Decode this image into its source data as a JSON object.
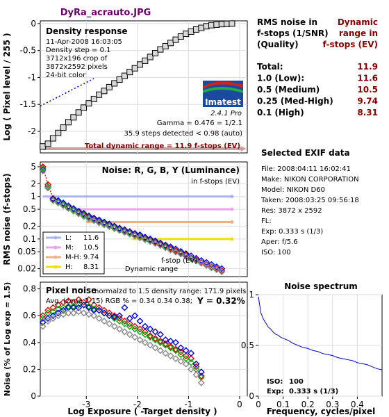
{
  "header": {
    "file_title": "DyRa_acrauto.JPG",
    "file_title_color": "#660066"
  },
  "summary": {
    "col1_header": [
      "RMS noise in",
      "f-stops (1/SNR)",
      "(Quality)"
    ],
    "col2_header": [
      "Dynamic",
      "range in",
      "f-stops (EV)"
    ],
    "rows": [
      {
        "label": "Total:",
        "value": "11.9"
      },
      {
        "label": "1.0   (Low):",
        "value": "11.6"
      },
      {
        "label": "0.5   (Medium)",
        "value": "10.5"
      },
      {
        "label": "0.25 (Med-High)",
        "value": "9.74"
      },
      {
        "label": "0.1   (High)",
        "value": "8.31"
      }
    ],
    "value_color": "#800000"
  },
  "exif": {
    "title": "Selected EXIF data",
    "lines": [
      "File:  2008:04:11 16:02:41",
      "Make:  NIKON CORPORATION",
      "Model: NIKON D60",
      "Taken: 2008:03:25 09:56:18",
      "Res:   3872 x 2592",
      "FL:",
      "Exp:   0.333 s  (1/3)",
      "Aper:  f/5.6",
      "ISO:   100"
    ]
  },
  "logo": {
    "brand": "Imatest",
    "version": "2.4.1  Pro"
  },
  "shared_x_axis": {
    "label": "Log Exposure ( -Target density )",
    "ticks": [
      -3,
      -2,
      -1,
      0
    ],
    "range": [
      -3.9,
      0.15
    ]
  },
  "chart_data": [
    {
      "id": "density",
      "type": "line",
      "title": "Density response",
      "info_lines": [
        "11-Apr-2008 16:03:05",
        "Density step = 0.1",
        "3712x196 crop of",
        "3872x2592 pixels",
        "24-bit color"
      ],
      "notes": [
        "Gamma = 0.476 = 1/2.1",
        "35.9 steps detected < 0.98 (auto)"
      ],
      "footer": "Total dynamic range = 11.9 f-stops (EV)",
      "ylabel": "Log ( Pixel level / 255 )",
      "ylim": [
        -2.4,
        0.05
      ],
      "yticks": [
        0,
        -0.5,
        -1,
        -1.5,
        -2
      ],
      "x": [
        -3.85,
        -3.75,
        -3.65,
        -3.55,
        -3.45,
        -3.35,
        -3.25,
        -3.15,
        -3.05,
        -2.95,
        -2.85,
        -2.75,
        -2.65,
        -2.55,
        -2.45,
        -2.35,
        -2.25,
        -2.15,
        -2.05,
        -1.95,
        -1.85,
        -1.75,
        -1.65,
        -1.55,
        -1.45,
        -1.35,
        -1.25,
        -1.15,
        -1.05,
        -0.95,
        -0.85,
        -0.75,
        -0.65,
        -0.55,
        -0.45,
        -0.35,
        -0.25,
        -0.15
      ],
      "y": [
        -2.28,
        -2.23,
        -2.13,
        -2.03,
        -1.93,
        -1.83,
        -1.74,
        -1.65,
        -1.56,
        -1.48,
        -1.4,
        -1.32,
        -1.25,
        -1.18,
        -1.11,
        -1.04,
        -0.97,
        -0.9,
        -0.83,
        -0.76,
        -0.69,
        -0.62,
        -0.55,
        -0.48,
        -0.42,
        -0.36,
        -0.3,
        -0.24,
        -0.19,
        -0.15,
        -0.11,
        -0.08,
        -0.05,
        -0.03,
        -0.02,
        -0.01,
        -0.005,
        0.0
      ],
      "fit_line": {
        "x": [
          -3.9,
          -2.85
        ],
        "y": [
          -1.53,
          -1.02
        ],
        "color": "#0000cc"
      },
      "range_bar": {
        "x": [
          -3.85,
          0.05
        ],
        "color": "#c8a0a0"
      }
    },
    {
      "id": "rms-noise",
      "type": "line",
      "title": "Noise: R, G, B, Y (Luminance)",
      "subtitle": "in f-stops (EV)",
      "ylabel": "RMS noise (f-stops)",
      "yscale": "log",
      "ylim": [
        0.013,
        6.5
      ],
      "yticks": [
        5,
        2,
        1,
        0.5,
        0.2,
        0.1,
        0.05,
        0.02
      ],
      "ytick_labels": [
        "5",
        "2",
        "1",
        "0.5",
        "0.2",
        "0.1",
        "0.05",
        "0.02"
      ],
      "thresholds": [
        {
          "name": "L:",
          "value": "11.6",
          "y": 1.0,
          "x_start": -3.85,
          "color": "#a8b4f0"
        },
        {
          "name": "M:",
          "value": "10.5",
          "y": 0.5,
          "x_start": -3.4,
          "color": "#f0a0f0"
        },
        {
          "name": "M-H:",
          "value": "9.74",
          "y": 0.25,
          "x_start": -3.0,
          "color": "#f0b080"
        },
        {
          "name": "H:",
          "value": "8.31",
          "y": 0.1,
          "x_start": -2.1,
          "color": "#f0e000"
        }
      ],
      "annotations": [
        "f-stop (EV)",
        "Dynamic range"
      ],
      "series": [
        {
          "name": "R",
          "color": "#dd0000",
          "x": [
            -3.85,
            -3.75,
            -3.65,
            -3.55,
            -3.45,
            -3.35,
            -3.25,
            -3.15,
            -3.05,
            -2.95,
            -2.85,
            -2.75,
            -2.65,
            -2.55,
            -2.45,
            -2.35,
            -2.25,
            -2.15,
            -2.05,
            -1.95,
            -1.85,
            -1.75,
            -1.65,
            -1.55,
            -1.45,
            -1.35,
            -1.25,
            -1.15,
            -1.05,
            -0.95,
            -0.85,
            -0.75,
            -0.65,
            -0.55,
            -0.45,
            -0.35
          ],
          "y": [
            5.0,
            1.9,
            0.9,
            0.78,
            0.68,
            0.58,
            0.5,
            0.43,
            0.38,
            0.34,
            0.3,
            0.27,
            0.24,
            0.22,
            0.2,
            0.175,
            0.16,
            0.145,
            0.13,
            0.12,
            0.105,
            0.095,
            0.085,
            0.075,
            0.068,
            0.06,
            0.053,
            0.047,
            0.042,
            0.036,
            0.032,
            0.028,
            0.025,
            0.022,
            0.02,
            0.018
          ]
        },
        {
          "name": "G",
          "color": "#00aa00",
          "x": [
            -3.85,
            -3.75,
            -3.65,
            -3.55,
            -3.45,
            -3.35,
            -3.25,
            -3.15,
            -3.05,
            -2.95,
            -2.85,
            -2.75,
            -2.65,
            -2.55,
            -2.45,
            -2.35,
            -2.25,
            -2.15,
            -2.05,
            -1.95,
            -1.85,
            -1.75,
            -1.65,
            -1.55,
            -1.45,
            -1.35,
            -1.25,
            -1.15,
            -1.05,
            -0.95,
            -0.85,
            -0.75,
            -0.65,
            -0.55,
            -0.45,
            -0.35
          ],
          "y": [
            4.6,
            1.7,
            0.85,
            0.74,
            0.64,
            0.55,
            0.48,
            0.41,
            0.36,
            0.32,
            0.28,
            0.25,
            0.23,
            0.205,
            0.185,
            0.165,
            0.15,
            0.135,
            0.12,
            0.11,
            0.1,
            0.09,
            0.08,
            0.071,
            0.064,
            0.057,
            0.05,
            0.045,
            0.04,
            0.035,
            0.031,
            0.027,
            0.024,
            0.021,
            0.019,
            0.017
          ]
        },
        {
          "name": "B",
          "color": "#0000dd",
          "x": [
            -3.85,
            -3.75,
            -3.65,
            -3.55,
            -3.45,
            -3.35,
            -3.25,
            -3.15,
            -3.05,
            -2.95,
            -2.85,
            -2.75,
            -2.65,
            -2.55,
            -2.45,
            -2.35,
            -2.25,
            -2.15,
            -2.05,
            -1.95,
            -1.85,
            -1.75,
            -1.65,
            -1.55,
            -1.45,
            -1.35,
            -1.25,
            -1.15,
            -1.05,
            -0.95,
            -0.85,
            -0.75,
            -0.65,
            -0.55,
            -0.45,
            -0.35
          ],
          "y": [
            4.2,
            1.6,
            0.88,
            0.8,
            0.7,
            0.6,
            0.52,
            0.45,
            0.4,
            0.35,
            0.31,
            0.28,
            0.25,
            0.225,
            0.2,
            0.18,
            0.165,
            0.15,
            0.135,
            0.125,
            0.11,
            0.1,
            0.09,
            0.08,
            0.072,
            0.065,
            0.058,
            0.051,
            0.045,
            0.04,
            0.035,
            0.031,
            0.028,
            0.025,
            0.022,
            0.02
          ]
        },
        {
          "name": "Y",
          "color": "#888888",
          "x": [
            -3.85,
            -3.75,
            -3.65,
            -3.55,
            -3.45,
            -3.35,
            -3.25,
            -3.15,
            -3.05,
            -2.95,
            -2.85,
            -2.75,
            -2.65,
            -2.55,
            -2.45,
            -2.35,
            -2.25,
            -2.15,
            -2.05,
            -1.95,
            -1.85,
            -1.75,
            -1.65,
            -1.55,
            -1.45,
            -1.35,
            -1.25,
            -1.15,
            -1.05,
            -0.95,
            -0.85,
            -0.75,
            -0.65,
            -0.55,
            -0.45,
            -0.35
          ],
          "y": [
            4.0,
            1.6,
            0.8,
            0.7,
            0.61,
            0.52,
            0.45,
            0.39,
            0.34,
            0.3,
            0.27,
            0.24,
            0.215,
            0.195,
            0.175,
            0.158,
            0.143,
            0.13,
            0.117,
            0.106,
            0.096,
            0.087,
            0.078,
            0.07,
            0.062,
            0.055,
            0.049,
            0.044,
            0.039,
            0.034,
            0.03,
            0.027,
            0.024,
            0.021,
            0.019,
            0.017
          ]
        }
      ]
    },
    {
      "id": "pixel-noise",
      "type": "line",
      "title": "Pixel noise",
      "info_line1": "normalzd to 1.5 density range: 171.9 pixels",
      "info_line2": "Avg. (zone 2-15) RGB % = 0.34  0.34  0.38;",
      "y_summary": "Y = 0.32%",
      "ylabel": "Noise (% of Log exp = 1.5)",
      "ylim": [
        0,
        0.85
      ],
      "yticks": [
        0,
        0.2,
        0.4,
        0.6,
        0.8
      ],
      "series": [
        {
          "name": "R",
          "color": "#dd0000",
          "x": [
            -3.85,
            -3.75,
            -3.65,
            -3.55,
            -3.45,
            -3.35,
            -3.25,
            -3.15,
            -3.05,
            -2.95,
            -2.85,
            -2.75,
            -2.65,
            -2.55,
            -2.45,
            -2.35,
            -2.25,
            -2.15,
            -2.05,
            -1.95,
            -1.85,
            -1.75,
            -1.65,
            -1.55,
            -1.45,
            -1.35,
            -1.25,
            -1.15,
            -1.05,
            -0.95,
            -0.85,
            -0.75
          ],
          "y": [
            0.6,
            0.64,
            0.66,
            0.68,
            0.7,
            0.71,
            0.7,
            0.72,
            0.7,
            0.72,
            0.68,
            0.66,
            0.64,
            0.62,
            0.6,
            0.58,
            0.56,
            0.54,
            0.52,
            0.5,
            0.48,
            0.45,
            0.43,
            0.41,
            0.39,
            0.37,
            0.35,
            0.33,
            0.3,
            0.28,
            0.22,
            0.15
          ]
        },
        {
          "name": "G",
          "color": "#00aa00",
          "x": [
            -3.85,
            -3.75,
            -3.65,
            -3.55,
            -3.45,
            -3.35,
            -3.25,
            -3.15,
            -3.05,
            -2.95,
            -2.85,
            -2.75,
            -2.65,
            -2.55,
            -2.45,
            -2.35,
            -2.25,
            -2.15,
            -2.05,
            -1.95,
            -1.85,
            -1.75,
            -1.65,
            -1.55,
            -1.45,
            -1.35,
            -1.25,
            -1.15,
            -1.05,
            -0.95,
            -0.85,
            -0.75
          ],
          "y": [
            0.58,
            0.62,
            0.63,
            0.65,
            0.66,
            0.67,
            0.67,
            0.68,
            0.68,
            0.67,
            0.65,
            0.64,
            0.62,
            0.6,
            0.58,
            0.56,
            0.54,
            0.52,
            0.5,
            0.48,
            0.46,
            0.44,
            0.42,
            0.4,
            0.38,
            0.36,
            0.34,
            0.31,
            0.28,
            0.25,
            0.2,
            0.14
          ]
        },
        {
          "name": "B",
          "color": "#0000dd",
          "x": [
            -3.85,
            -3.75,
            -3.65,
            -3.55,
            -3.45,
            -3.35,
            -3.25,
            -3.15,
            -3.05,
            -2.95,
            -2.85,
            -2.75,
            -2.65,
            -2.55,
            -2.45,
            -2.35,
            -2.25,
            -2.15,
            -2.05,
            -1.95,
            -1.85,
            -1.75,
            -1.65,
            -1.55,
            -1.45,
            -1.35,
            -1.25,
            -1.15,
            -1.05,
            -0.95,
            -0.85,
            -0.75
          ],
          "y": [
            0.55,
            0.58,
            0.6,
            0.62,
            0.64,
            0.66,
            0.66,
            0.66,
            0.68,
            0.66,
            0.64,
            0.64,
            0.62,
            0.6,
            0.59,
            0.6,
            0.66,
            0.58,
            0.6,
            0.56,
            0.52,
            0.5,
            0.48,
            0.46,
            0.42,
            0.41,
            0.4,
            0.36,
            0.34,
            0.32,
            0.24,
            0.18
          ]
        },
        {
          "name": "Y",
          "color": "#888888",
          "x": [
            -3.85,
            -3.75,
            -3.65,
            -3.55,
            -3.45,
            -3.35,
            -3.25,
            -3.15,
            -3.05,
            -2.95,
            -2.85,
            -2.75,
            -2.65,
            -2.55,
            -2.45,
            -2.35,
            -2.25,
            -2.15,
            -2.05,
            -1.95,
            -1.85,
            -1.75,
            -1.65,
            -1.55,
            -1.45,
            -1.35,
            -1.25,
            -1.15,
            -1.05,
            -0.95,
            -0.85,
            -0.75
          ],
          "y": [
            0.52,
            0.56,
            0.58,
            0.6,
            0.61,
            0.62,
            0.62,
            0.63,
            0.62,
            0.61,
            0.6,
            0.58,
            0.56,
            0.54,
            0.52,
            0.5,
            0.48,
            0.46,
            0.44,
            0.42,
            0.4,
            0.38,
            0.36,
            0.34,
            0.32,
            0.3,
            0.28,
            0.26,
            0.24,
            0.2,
            0.16,
            0.1
          ]
        }
      ]
    },
    {
      "id": "noise-spectrum",
      "type": "line",
      "title": "Noise spectrum",
      "xlabel": "Frequency, cycles/pixel",
      "xlim": [
        0,
        0.5
      ],
      "ylim": [
        0,
        1.0
      ],
      "xticks": [
        0,
        0.1,
        0.2,
        0.3,
        0.4
      ],
      "yticks": [
        0,
        0.5,
        1
      ],
      "iso_label": "ISO:",
      "iso_value": "100",
      "exp_label": "Exp:",
      "exp_value": "0.333 s   (1/3)",
      "series": [
        {
          "name": "noise",
          "color": "#0000cc",
          "x": [
            0.0,
            0.01,
            0.02,
            0.03,
            0.04,
            0.05,
            0.06,
            0.07,
            0.08,
            0.09,
            0.1,
            0.12,
            0.14,
            0.16,
            0.18,
            0.2,
            0.22,
            0.24,
            0.26,
            0.28,
            0.3,
            0.32,
            0.34,
            0.36,
            0.38,
            0.4,
            0.42,
            0.44,
            0.46,
            0.48,
            0.5
          ],
          "y": [
            0.98,
            0.82,
            0.76,
            0.72,
            0.68,
            0.66,
            0.63,
            0.61,
            0.6,
            0.58,
            0.57,
            0.55,
            0.52,
            0.5,
            0.48,
            0.47,
            0.45,
            0.44,
            0.42,
            0.41,
            0.4,
            0.38,
            0.37,
            0.36,
            0.35,
            0.33,
            0.32,
            0.31,
            0.29,
            0.27,
            0.26
          ]
        }
      ]
    }
  ]
}
